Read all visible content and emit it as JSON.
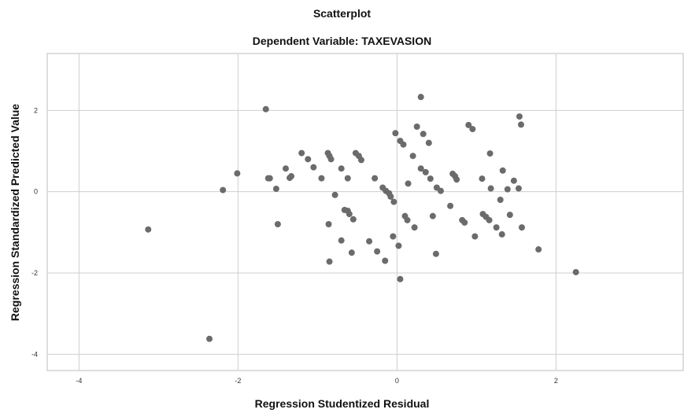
{
  "chart_data": {
    "type": "scatter",
    "title": "Scatterplot",
    "subtitle": "Dependent Variable: TAXEVASION",
    "xlabel": "Regression Studentized Residual",
    "ylabel": "Regression Standardized Predicted Value",
    "xlim": [
      -4.4,
      3.6
    ],
    "ylim": [
      -4.4,
      3.4
    ],
    "xticks": [
      -4,
      -2,
      0,
      2
    ],
    "yticks": [
      -4,
      -2,
      0,
      2
    ],
    "xtick_labels": [
      "-4",
      "-2",
      "0",
      "2"
    ],
    "ytick_labels": [
      "-4",
      "-2",
      "0",
      "2"
    ],
    "grid": true,
    "point_color": "#6b6b6b",
    "points": [
      [
        -3.13,
        -0.93
      ],
      [
        -2.36,
        -3.62
      ],
      [
        -2.19,
        0.04
      ],
      [
        -2.01,
        0.45
      ],
      [
        -1.65,
        2.03
      ],
      [
        -1.62,
        0.33
      ],
      [
        -1.6,
        0.33
      ],
      [
        -1.52,
        0.07
      ],
      [
        -1.5,
        -0.8
      ],
      [
        -1.4,
        0.57
      ],
      [
        -1.35,
        0.34
      ],
      [
        -1.33,
        0.38
      ],
      [
        -1.2,
        0.95
      ],
      [
        -1.12,
        0.8
      ],
      [
        -1.05,
        0.6
      ],
      [
        -0.95,
        0.33
      ],
      [
        -0.87,
        0.95
      ],
      [
        -0.85,
        0.88
      ],
      [
        -0.83,
        0.8
      ],
      [
        -0.78,
        -0.08
      ],
      [
        -0.86,
        -0.8
      ],
      [
        -0.85,
        -1.72
      ],
      [
        -0.7,
        0.57
      ],
      [
        -0.7,
        -1.2
      ],
      [
        -0.66,
        -0.45
      ],
      [
        -0.62,
        -0.47
      ],
      [
        -0.6,
        -0.55
      ],
      [
        -0.62,
        0.33
      ],
      [
        -0.57,
        -1.5
      ],
      [
        -0.52,
        0.95
      ],
      [
        -0.48,
        0.88
      ],
      [
        -0.45,
        0.78
      ],
      [
        -0.55,
        -0.68
      ],
      [
        -0.35,
        -1.22
      ],
      [
        -0.28,
        0.33
      ],
      [
        -0.25,
        -1.47
      ],
      [
        -0.15,
        -1.7
      ],
      [
        -0.18,
        0.1
      ],
      [
        -0.14,
        0.02
      ],
      [
        -0.1,
        -0.04
      ],
      [
        -0.08,
        -0.12
      ],
      [
        -0.04,
        -0.25
      ],
      [
        -0.05,
        -1.1
      ],
      [
        -0.02,
        1.44
      ],
      [
        0.04,
        1.25
      ],
      [
        0.08,
        1.16
      ],
      [
        0.02,
        -1.33
      ],
      [
        0.04,
        -2.15
      ],
      [
        0.1,
        -0.6
      ],
      [
        0.13,
        -0.7
      ],
      [
        0.14,
        0.2
      ],
      [
        0.2,
        0.88
      ],
      [
        0.22,
        -0.88
      ],
      [
        0.25,
        1.6
      ],
      [
        0.3,
        2.33
      ],
      [
        0.3,
        0.57
      ],
      [
        0.33,
        1.42
      ],
      [
        0.36,
        0.48
      ],
      [
        0.4,
        1.2
      ],
      [
        0.42,
        0.32
      ],
      [
        0.45,
        -0.6
      ],
      [
        0.5,
        0.1
      ],
      [
        0.49,
        -1.53
      ],
      [
        0.55,
        0.02
      ],
      [
        0.67,
        -0.35
      ],
      [
        0.7,
        0.44
      ],
      [
        0.73,
        0.38
      ],
      [
        0.75,
        0.3
      ],
      [
        0.82,
        -0.7
      ],
      [
        0.85,
        -0.76
      ],
      [
        0.9,
        1.64
      ],
      [
        0.95,
        1.54
      ],
      [
        0.98,
        -1.1
      ],
      [
        1.07,
        0.32
      ],
      [
        1.08,
        -0.55
      ],
      [
        1.12,
        -0.62
      ],
      [
        1.16,
        -0.7
      ],
      [
        1.17,
        0.94
      ],
      [
        1.18,
        0.08
      ],
      [
        1.25,
        -0.88
      ],
      [
        1.3,
        -0.2
      ],
      [
        1.32,
        -1.05
      ],
      [
        1.33,
        0.52
      ],
      [
        1.39,
        0.06
      ],
      [
        1.42,
        -0.57
      ],
      [
        1.47,
        0.27
      ],
      [
        1.53,
        0.08
      ],
      [
        1.54,
        1.85
      ],
      [
        1.56,
        1.65
      ],
      [
        1.57,
        -0.88
      ],
      [
        1.78,
        -1.42
      ],
      [
        2.25,
        -1.98
      ]
    ]
  }
}
